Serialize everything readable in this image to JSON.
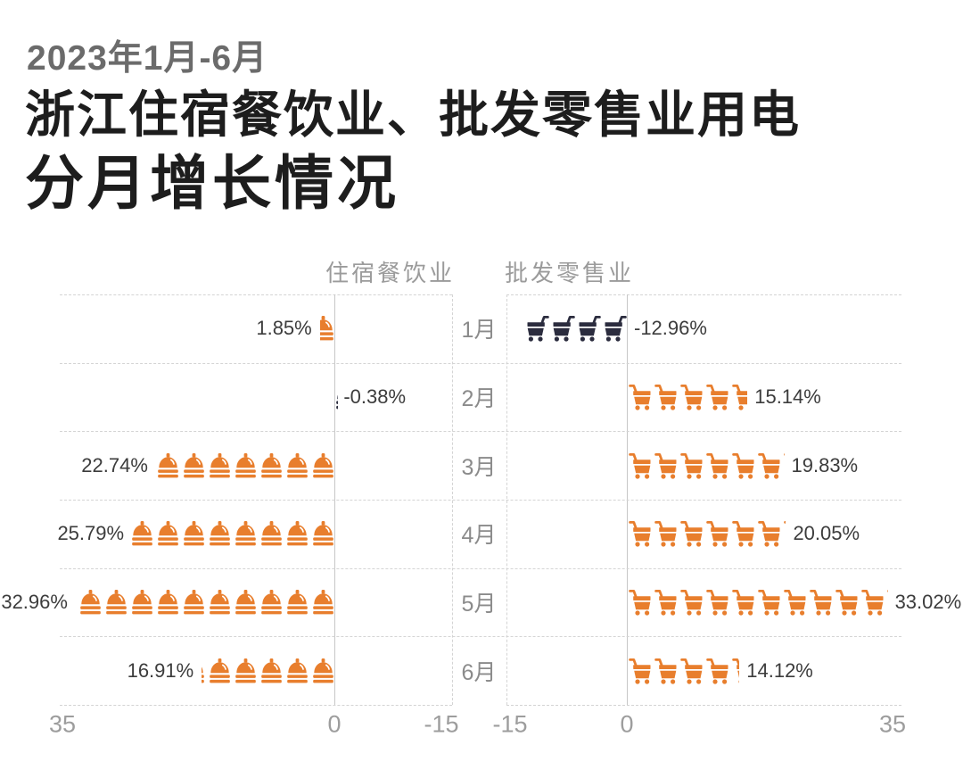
{
  "title": {
    "period": "2023年1月-6月",
    "main": "浙江住宿餐饮业、批发零售业用电",
    "sub": "分月增长情况"
  },
  "chart_data": {
    "type": "bar",
    "variant": "pictogram_tornado",
    "title": "2023年1月-6月 浙江住宿餐饮业、批发零售业用电分月增长情况",
    "categories": [
      "1月",
      "2月",
      "3月",
      "4月",
      "5月",
      "6月"
    ],
    "series": [
      {
        "name": "住宿餐饮业",
        "side": "left",
        "icon": "cloche-icon",
        "values": [
          1.85,
          -0.38,
          22.74,
          25.79,
          32.96,
          16.91
        ],
        "labels": [
          "1.85%",
          "-0.38%",
          "22.74%",
          "25.79%",
          "32.96%",
          "16.91%"
        ]
      },
      {
        "name": "批发零售业",
        "side": "right",
        "icon": "shopping-cart-icon",
        "values": [
          -12.96,
          15.14,
          19.83,
          20.05,
          33.02,
          14.12
        ],
        "labels": [
          "-12.96%",
          "15.14%",
          "19.83%",
          "20.05%",
          "33.02%",
          "14.12%"
        ]
      }
    ],
    "axis": {
      "min": -15,
      "max": 35,
      "left_chart_tick_order": [
        "35",
        "0",
        "-15"
      ],
      "right_chart_tick_order": [
        "-15",
        "0",
        "35"
      ],
      "ticks": [
        {
          "label": "35",
          "value": 35
        },
        {
          "label": "0",
          "value": 0
        },
        {
          "label": "-15",
          "value": -15
        }
      ]
    },
    "unit_per_icon_percent": 3.3,
    "grid": "dashed-row-separators",
    "legend_position": "top-inner-edges",
    "colors": {
      "positive": "#E87E2D",
      "negative": "#2B2C3E",
      "value_label": "#3c3c3c",
      "muted_text": "#9b9b9b",
      "title_text": "#1d1d1d",
      "period_text": "#6b6b6b"
    }
  }
}
